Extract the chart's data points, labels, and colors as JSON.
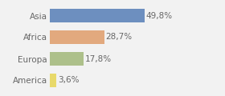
{
  "categories": [
    "Asia",
    "Africa",
    "Europa",
    "America"
  ],
  "values": [
    49.8,
    28.7,
    17.8,
    3.6
  ],
  "labels": [
    "49,8%",
    "28,7%",
    "17,8%",
    "3,6%"
  ],
  "bar_colors": [
    "#6d8fbf",
    "#e2a97e",
    "#adc08a",
    "#e8d96a"
  ],
  "background_color": "#f2f2f2",
  "xlim": [
    0,
    78
  ],
  "label_fontsize": 7.5,
  "tick_fontsize": 7.5,
  "label_color": "#666666",
  "bar_height": 0.62
}
